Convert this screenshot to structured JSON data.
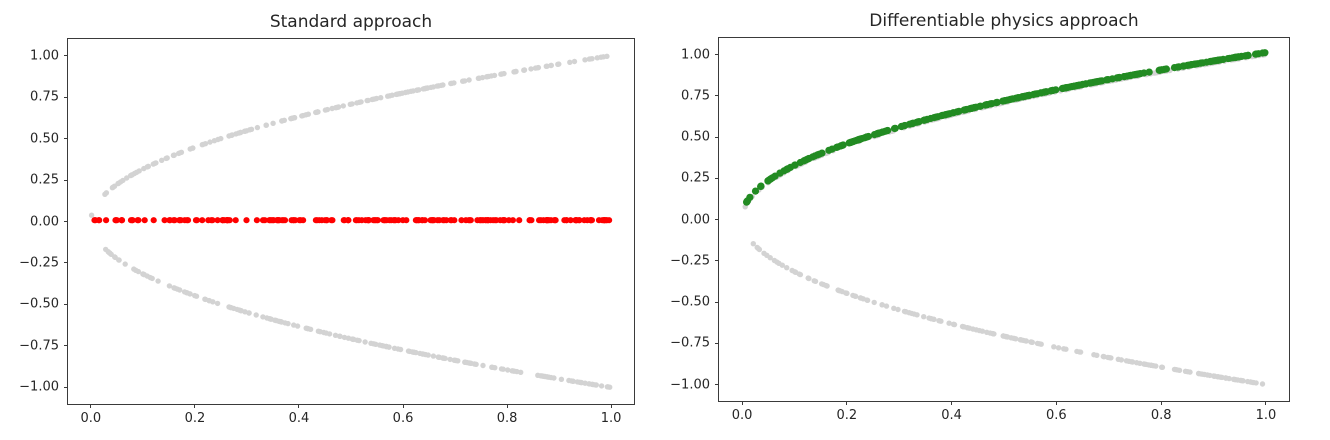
{
  "figure": {
    "background": "#ffffff",
    "axis_color": "#3a3a3a",
    "text_color": "#262626"
  },
  "chart_data": [
    {
      "id": "standard",
      "type": "scatter",
      "title": "Standard approach",
      "xlabel": "",
      "ylabel": "",
      "xlim": [
        -0.044,
        1.044
      ],
      "ylim": [
        -1.1,
        1.1
      ],
      "grid": false,
      "legend": "none",
      "xticks": {
        "values": [
          0.0,
          0.2,
          0.4,
          0.6,
          0.8,
          1.0
        ],
        "labels": [
          "0.0",
          "0.2",
          "0.4",
          "0.6",
          "0.8",
          "1.0"
        ]
      },
      "yticks": {
        "values": [
          1.0,
          0.75,
          0.5,
          0.25,
          0.0,
          -0.25,
          -0.5,
          -0.75,
          -1.0
        ],
        "labels": [
          "1.00",
          "0.75",
          "0.50",
          "0.25",
          "0.00",
          "−0.25",
          "−0.50",
          "−0.75",
          "−1.00"
        ]
      },
      "series": [
        {
          "name": "solution-upper-branch",
          "fn": "sqrt",
          "relation": "y = +sqrt(x)",
          "color": "#d3d3d3",
          "x_range": [
            0.0005,
            1.0
          ],
          "n_points": 180,
          "marker_radius": 2.7,
          "seed": 101
        },
        {
          "name": "solution-lower-branch",
          "fn": "neg_sqrt",
          "relation": "y = -sqrt(x)",
          "color": "#d3d3d3",
          "x_range": [
            0.0005,
            1.0
          ],
          "n_points": 180,
          "marker_radius": 2.7,
          "seed": 202
        },
        {
          "name": "nn-prediction-collapsed",
          "fn": "const",
          "y_const": 0.008,
          "relation": "y ≈ 0 (supervised NN collapses to mean of the two solutions)",
          "color": "#ff0000",
          "x_range": [
            0.0,
            1.0
          ],
          "n_points": 200,
          "marker_radius": 3.1,
          "seed": 303
        }
      ]
    },
    {
      "id": "diffphys",
      "type": "scatter",
      "title": "Differentiable physics approach",
      "xlabel": "",
      "ylabel": "",
      "xlim": [
        -0.044,
        1.044
      ],
      "ylim": [
        -1.1,
        1.1
      ],
      "grid": false,
      "legend": "none",
      "xticks": {
        "values": [
          0.0,
          0.2,
          0.4,
          0.6,
          0.8,
          1.0
        ],
        "labels": [
          "0.0",
          "0.2",
          "0.4",
          "0.6",
          "0.8",
          "1.0"
        ]
      },
      "yticks": {
        "values": [
          1.0,
          0.75,
          0.5,
          0.25,
          0.0,
          -0.25,
          -0.5,
          -0.75,
          -1.0
        ],
        "labels": [
          "1.00",
          "0.75",
          "0.50",
          "0.25",
          "0.00",
          "−0.25",
          "−0.50",
          "−0.75",
          "−1.00"
        ]
      },
      "series": [
        {
          "name": "solution-upper-branch",
          "fn": "sqrt",
          "relation": "y = +sqrt(x)",
          "color": "#d3d3d3",
          "x_range": [
            0.0005,
            1.0
          ],
          "n_points": 180,
          "marker_radius": 2.7,
          "seed": 404
        },
        {
          "name": "solution-lower-branch",
          "fn": "neg_sqrt",
          "relation": "y = -sqrt(x)",
          "color": "#d3d3d3",
          "x_range": [
            0.0005,
            1.0
          ],
          "n_points": 180,
          "marker_radius": 2.7,
          "seed": 505
        },
        {
          "name": "nn-prediction-physics",
          "fn": "sqrt",
          "y_offset": 0.012,
          "relation": "y ≈ +sqrt(x) (NN converges to upper solution branch)",
          "color": "#228B22",
          "x_range": [
            0.004,
            1.0
          ],
          "n_points": 280,
          "marker_radius": 3.6,
          "seed": 606
        }
      ]
    }
  ]
}
